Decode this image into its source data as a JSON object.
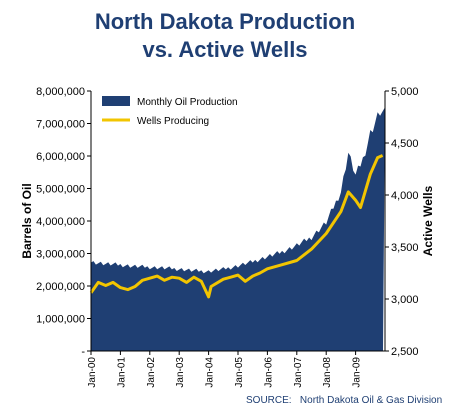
{
  "chart_data": {
    "type": "area+line",
    "title_line1": "North Dakota Production",
    "title_line2": "vs. Active Wells",
    "ylabel_left": "Barrels of Oil",
    "ylabel_right": "Active Wells",
    "ylim_left": [
      0,
      8000000
    ],
    "ylim_right": [
      2500,
      5000
    ],
    "yticks_left": [
      "-",
      "1,000,000",
      "2,000,000",
      "3,000,000",
      "4,000,000",
      "5,000,000",
      "6,000,000",
      "7,000,000",
      "8,000,000"
    ],
    "yticks_right": [
      "2,500",
      "3,000",
      "3,500",
      "4,000",
      "4,500",
      "5,000"
    ],
    "xticks": [
      "Jan-00",
      "Jan-01",
      "Jan-02",
      "Jan-03",
      "Jan-04",
      "Jan-05",
      "Jan-06",
      "Jan-07",
      "Jan-08",
      "Jan-09"
    ],
    "x_domain": [
      "Jan-00",
      "Dec-09"
    ],
    "legend": {
      "placement": "top-left",
      "production_label": "Monthly Oil Production",
      "wells_label": "Wells Producing"
    },
    "colors": {
      "production_fill": "#1f3f73",
      "wells_line": "#f2c500",
      "title": "#1f3f73"
    },
    "series": [
      {
        "name": "Monthly Oil Production",
        "axis": "left",
        "points": [
          [
            "Jan-00",
            2750000
          ],
          [
            "Jul-00",
            2680000
          ],
          [
            "Jan-01",
            2650000
          ],
          [
            "Jul-01",
            2600000
          ],
          [
            "Jan-02",
            2580000
          ],
          [
            "Jul-02",
            2550000
          ],
          [
            "Jan-03",
            2520000
          ],
          [
            "Jul-03",
            2470000
          ],
          [
            "Jan-04",
            2450000
          ],
          [
            "Jul-04",
            2520000
          ],
          [
            "Jan-05",
            2620000
          ],
          [
            "Jul-05",
            2750000
          ],
          [
            "Jan-06",
            2900000
          ],
          [
            "Jul-06",
            3050000
          ],
          [
            "Jan-07",
            3250000
          ],
          [
            "Jul-07",
            3500000
          ],
          [
            "Jan-08",
            3950000
          ],
          [
            "Jul-08",
            4900000
          ],
          [
            "Oct-08",
            6100000
          ],
          [
            "Jan-09",
            5400000
          ],
          [
            "Apr-09",
            5900000
          ],
          [
            "Jul-09",
            6700000
          ],
          [
            "Oct-09",
            7200000
          ],
          [
            "Dec-09",
            7500000
          ]
        ]
      },
      {
        "name": "Wells Producing",
        "axis": "right",
        "points": [
          [
            "Jan-00",
            3060
          ],
          [
            "Apr-00",
            3160
          ],
          [
            "Jul-00",
            3130
          ],
          [
            "Oct-00",
            3160
          ],
          [
            "Jan-01",
            3110
          ],
          [
            "Apr-01",
            3090
          ],
          [
            "Jul-01",
            3120
          ],
          [
            "Oct-01",
            3180
          ],
          [
            "Jan-02",
            3200
          ],
          [
            "Apr-02",
            3220
          ],
          [
            "Jul-02",
            3180
          ],
          [
            "Oct-02",
            3210
          ],
          [
            "Jan-03",
            3200
          ],
          [
            "Apr-03",
            3160
          ],
          [
            "Jul-03",
            3210
          ],
          [
            "Oct-03",
            3170
          ],
          [
            "Jan-04",
            3020
          ],
          [
            "Feb-04",
            3120
          ],
          [
            "Jul-04",
            3190
          ],
          [
            "Oct-04",
            3210
          ],
          [
            "Jan-05",
            3230
          ],
          [
            "Apr-05",
            3170
          ],
          [
            "Jul-05",
            3220
          ],
          [
            "Oct-05",
            3250
          ],
          [
            "Jan-06",
            3290
          ],
          [
            "Jul-06",
            3330
          ],
          [
            "Jan-07",
            3370
          ],
          [
            "Jul-07",
            3480
          ],
          [
            "Jan-08",
            3630
          ],
          [
            "Jul-08",
            3840
          ],
          [
            "Oct-08",
            4030
          ],
          [
            "Jan-09",
            3950
          ],
          [
            "Mar-09",
            3880
          ],
          [
            "Jul-09",
            4200
          ],
          [
            "Oct-09",
            4360
          ],
          [
            "Dec-09",
            4380
          ]
        ]
      }
    ]
  },
  "source": {
    "label": "SOURCE:",
    "text": "North Dakota Oil & Gas Division"
  }
}
